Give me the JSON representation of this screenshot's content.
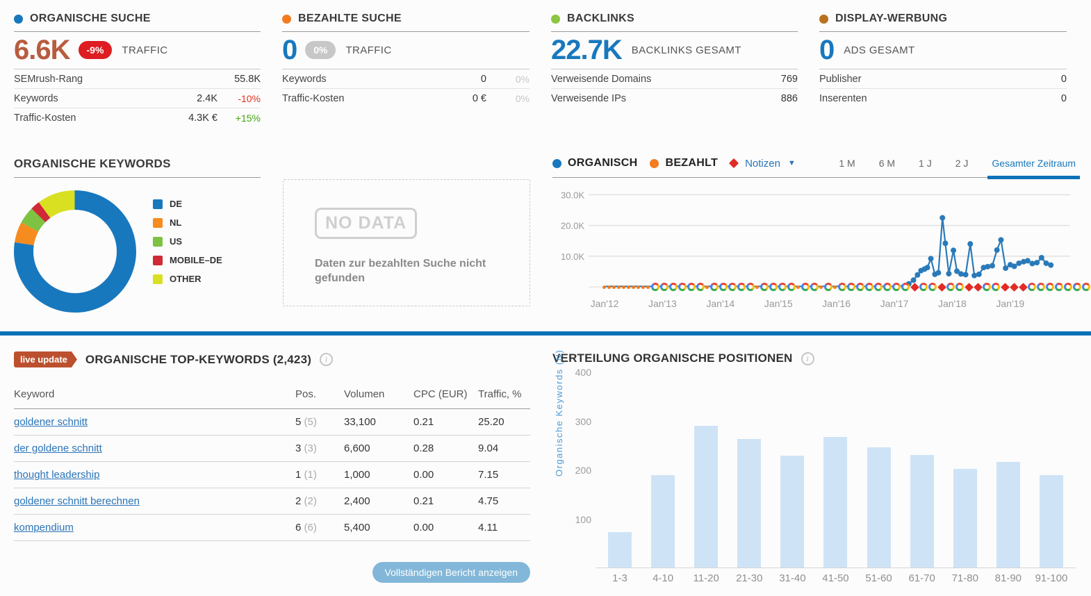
{
  "colors": {
    "organic_blue": "#1878be",
    "paid_orange": "#f47b20",
    "backlinks_green": "#8dc63f",
    "display_brown": "#b8721f",
    "brick": "#b85c3f",
    "badge_red": "#dd1d21",
    "negative": "#e0331f",
    "positive": "#3fa50e",
    "link_blue": "#2a74b8",
    "divider_blue": "#0b72b8",
    "bar_fill": "#cfe3f6",
    "note_red": "#e22b25"
  },
  "overview_cards": [
    {
      "title": "ORGANISCHE SUCHE",
      "big_value": "6.6K",
      "badge": "-9%",
      "big_label": "TRAFFIC",
      "rows": [
        {
          "label": "SEMrush-Rang",
          "value": "55.8K",
          "delta": ""
        },
        {
          "label": "Keywords",
          "value": "2.4K",
          "delta": "-10%"
        },
        {
          "label": "Traffic-Kosten",
          "value": "4.3K €",
          "delta": "+15%"
        }
      ]
    },
    {
      "title": "BEZAHLTE SUCHE",
      "big_value": "0",
      "badge": "0%",
      "big_label": "TRAFFIC",
      "rows": [
        {
          "label": "Keywords",
          "value": "0",
          "delta": "0%"
        },
        {
          "label": "Traffic-Kosten",
          "value": "0 €",
          "delta": "0%"
        }
      ]
    },
    {
      "title": "BACKLINKS",
      "big_value": "22.7K",
      "big_label": "BACKLINKS GESAMT",
      "rows": [
        {
          "label": "Verweisende Domains",
          "value": "769"
        },
        {
          "label": "Verweisende IPs",
          "value": "886"
        }
      ]
    },
    {
      "title": "DISPLAY-WERBUNG",
      "big_value": "0",
      "big_label": "ADS GESAMT",
      "rows": [
        {
          "label": "Publisher",
          "value": "0"
        },
        {
          "label": "Inserenten",
          "value": "0"
        }
      ]
    }
  ],
  "keywords_panel": {
    "title": "ORGANISCHE KEYWORDS",
    "chart_data": {
      "type": "pie",
      "labels": [
        "DE",
        "NL",
        "US",
        "MOBILE–DE",
        "OTHER"
      ],
      "values": [
        77.5,
        5.5,
        4.5,
        2.5,
        10
      ],
      "colors": [
        "#1878be",
        "#f68b1f",
        "#7dc242",
        "#cf2a36",
        "#d9e021"
      ]
    }
  },
  "no_data_panel": {
    "stamp": "NO DATA",
    "message": "Daten zur bezahlten Suche nicht gefunden"
  },
  "trend_panel": {
    "legend": [
      {
        "label": "ORGANISCH",
        "color": "#1878be"
      },
      {
        "label": "BEZAHLT",
        "color": "#f47b20"
      }
    ],
    "notes_label": "Notizen",
    "ranges": [
      "1 M",
      "6 M",
      "1 J",
      "2 J"
    ],
    "selected_range": "Gesamter Zeitraum",
    "annotation_pattern": "ddddddddddGGGGGGdGGGGGdGGGGdGGdGdGGGGGGGGNGGNGGNNGGNNNGGGGGGGN",
    "chart_data": {
      "type": "line",
      "yticks": [
        {
          "value": 10,
          "label": "10.0K"
        },
        {
          "value": 20,
          "label": "20.0K"
        },
        {
          "value": 30,
          "label": "30.0K"
        }
      ],
      "xticks": [
        "Jan'12",
        "Jan'13",
        "Jan'14",
        "Jan'15",
        "Jan'16",
        "Jan'17",
        "Jan'18",
        "Jan'19"
      ],
      "ylim_k": [
        0,
        33
      ],
      "series": [
        {
          "name": "ORGANISCH",
          "color": "#2a7ab9",
          "points": [
            [
              2012.02,
              0.15
            ],
            [
              2013.0,
              0.15
            ],
            [
              2014.0,
              0.15
            ],
            [
              2015.0,
              0.15
            ],
            [
              2016.0,
              0.15
            ],
            [
              2017.05,
              0.15
            ],
            [
              2017.15,
              0.4
            ],
            [
              2017.25,
              1.0
            ],
            [
              2017.33,
              2.2
            ],
            [
              2017.4,
              3.9
            ],
            [
              2017.46,
              5.3
            ],
            [
              2017.52,
              5.8
            ],
            [
              2017.57,
              6.3
            ],
            [
              2017.63,
              9.2
            ],
            [
              2017.7,
              4.1
            ],
            [
              2017.76,
              4.6
            ],
            [
              2017.83,
              22.5
            ],
            [
              2017.88,
              14.2
            ],
            [
              2017.94,
              4.3
            ],
            [
              2018.02,
              11.9
            ],
            [
              2018.08,
              5.1
            ],
            [
              2018.15,
              4.2
            ],
            [
              2018.23,
              4.0
            ],
            [
              2018.31,
              14.0
            ],
            [
              2018.38,
              3.7
            ],
            [
              2018.46,
              4.1
            ],
            [
              2018.54,
              6.3
            ],
            [
              2018.61,
              6.6
            ],
            [
              2018.69,
              6.9
            ],
            [
              2018.77,
              12.0
            ],
            [
              2018.84,
              15.3
            ],
            [
              2018.92,
              6.1
            ],
            [
              2019.0,
              7.2
            ],
            [
              2019.07,
              6.7
            ],
            [
              2019.15,
              7.7
            ],
            [
              2019.23,
              8.2
            ],
            [
              2019.3,
              8.5
            ],
            [
              2019.38,
              7.6
            ],
            [
              2019.46,
              7.9
            ],
            [
              2019.54,
              9.5
            ],
            [
              2019.62,
              7.7
            ],
            [
              2019.7,
              7.1
            ]
          ]
        },
        {
          "name": "BEZAHLT",
          "color": "#f47b20",
          "points": []
        }
      ]
    }
  },
  "top_keywords": {
    "badge": "live update",
    "title": "ORGANISCHE TOP-KEYWORDS (2,423)",
    "columns": [
      "Keyword",
      "Pos.",
      "Volumen",
      "CPC (EUR)",
      "Traffic, %"
    ],
    "rows": [
      {
        "keyword": "goldener schnitt",
        "pos": "5",
        "pos_prev": "(5)",
        "volume": "33,100",
        "cpc": "0.21",
        "traffic": "25.20"
      },
      {
        "keyword": "der goldene schnitt",
        "pos": "3",
        "pos_prev": "(3)",
        "volume": "6,600",
        "cpc": "0.28",
        "traffic": "9.04"
      },
      {
        "keyword": "thought leadership",
        "pos": "1",
        "pos_prev": "(1)",
        "volume": "1,000",
        "cpc": "0.00",
        "traffic": "7.15"
      },
      {
        "keyword": "goldener schnitt berechnen",
        "pos": "2",
        "pos_prev": "(2)",
        "volume": "2,400",
        "cpc": "0.21",
        "traffic": "4.75"
      },
      {
        "keyword": "kompendium",
        "pos": "6",
        "pos_prev": "(6)",
        "volume": "5,400",
        "cpc": "0.00",
        "traffic": "4.11"
      }
    ],
    "button": "Vollständigen Bericht anzeigen"
  },
  "positions_panel": {
    "title": "VERTEILUNG ORGANISCHE POSITIONEN",
    "chart_data": {
      "type": "bar",
      "categories": [
        "1-3",
        "4-10",
        "11-20",
        "21-30",
        "31-40",
        "41-50",
        "51-60",
        "61-70",
        "71-80",
        "81-90",
        "91-100"
      ],
      "values": [
        72,
        188,
        290,
        263,
        228,
        267,
        245,
        230,
        201,
        216,
        188
      ],
      "ylabel": "Organische Keywords (N)",
      "yticks": [
        100,
        200,
        300,
        400
      ],
      "ylim": [
        0,
        400
      ]
    }
  }
}
